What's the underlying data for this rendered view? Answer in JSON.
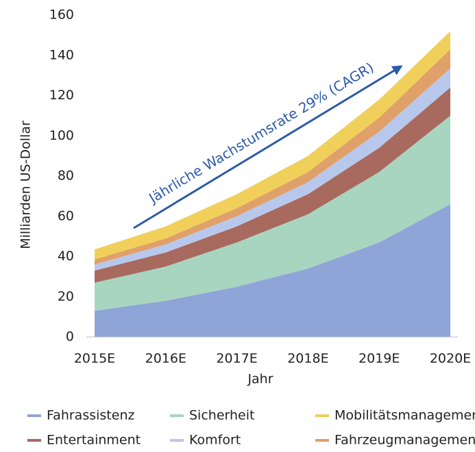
{
  "chart_data": {
    "type": "area",
    "stacked": true,
    "annotation": "Jährliche Wachstumsrate 29% (CAGR)",
    "xlabel": "Jahr",
    "ylabel": "Milliarden US-Dollar",
    "categories": [
      "2015E",
      "2016E",
      "2017E",
      "2018E",
      "2019E",
      "2020E"
    ],
    "series": [
      {
        "name": "Fahrassistenz",
        "color": "#8fa5d8",
        "values": [
          13,
          18,
          25,
          34,
          47,
          66
        ]
      },
      {
        "name": "Sicherheit",
        "color": "#a8d5c0",
        "values": [
          14,
          17,
          22,
          27,
          35,
          44
        ]
      },
      {
        "name": "Entertainment",
        "color": "#a86a5e",
        "values": [
          6,
          7,
          8,
          10,
          12,
          14
        ]
      },
      {
        "name": "Komfort",
        "color": "#b8c8ec",
        "values": [
          3,
          4,
          5,
          6,
          8,
          9.5
        ]
      },
      {
        "name": "Fahrzeugmanagement",
        "color": "#e0a06a",
        "values": [
          2.5,
          3,
          4,
          5,
          7,
          9.5
        ]
      },
      {
        "name": "Mobilitätsmanagement",
        "color": "#f0d05a",
        "values": [
          5,
          6,
          7,
          8,
          9,
          9
        ]
      }
    ],
    "ylim": [
      0,
      160
    ],
    "yticks": [
      0,
      20,
      40,
      60,
      80,
      100,
      120,
      140,
      160
    ],
    "grid": false
  }
}
